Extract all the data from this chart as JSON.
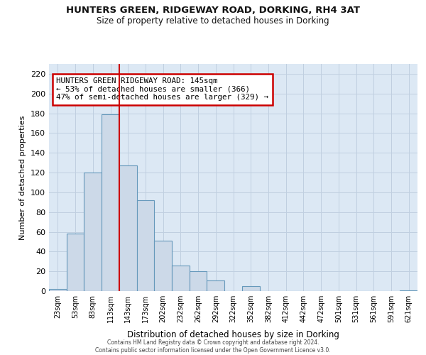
{
  "title1": "HUNTERS GREEN, RIDGEWAY ROAD, DORKING, RH4 3AT",
  "title2": "Size of property relative to detached houses in Dorking",
  "xlabel": "Distribution of detached houses by size in Dorking",
  "ylabel": "Number of detached properties",
  "bar_labels": [
    "23sqm",
    "53sqm",
    "83sqm",
    "113sqm",
    "143sqm",
    "173sqm",
    "202sqm",
    "232sqm",
    "262sqm",
    "292sqm",
    "322sqm",
    "352sqm",
    "382sqm",
    "412sqm",
    "442sqm",
    "472sqm",
    "501sqm",
    "531sqm",
    "561sqm",
    "591sqm",
    "621sqm"
  ],
  "bar_values": [
    2,
    58,
    120,
    179,
    127,
    92,
    51,
    26,
    20,
    11,
    0,
    5,
    0,
    0,
    0,
    0,
    0,
    0,
    0,
    0,
    1
  ],
  "bar_color": "#ccd9e8",
  "bar_edge_color": "#6699bb",
  "bar_edge_width": 0.8,
  "red_line_x": 3.5,
  "annotation_title": "HUNTERS GREEN RIDGEWAY ROAD: 145sqm",
  "annotation_line1": "← 53% of detached houses are smaller (366)",
  "annotation_line2": "47% of semi-detached houses are larger (329) →",
  "annotation_box_color": "#ffffff",
  "annotation_box_edge": "#cc0000",
  "red_line_color": "#cc0000",
  "ylim": [
    0,
    230
  ],
  "yticks": [
    0,
    20,
    40,
    60,
    80,
    100,
    120,
    140,
    160,
    180,
    200,
    220
  ],
  "grid_color": "#c0cfe0",
  "bg_color": "#dce8f4",
  "footer1": "Contains HM Land Registry data © Crown copyright and database right 2024.",
  "footer2": "Contains public sector information licensed under the Open Government Licence v3.0."
}
